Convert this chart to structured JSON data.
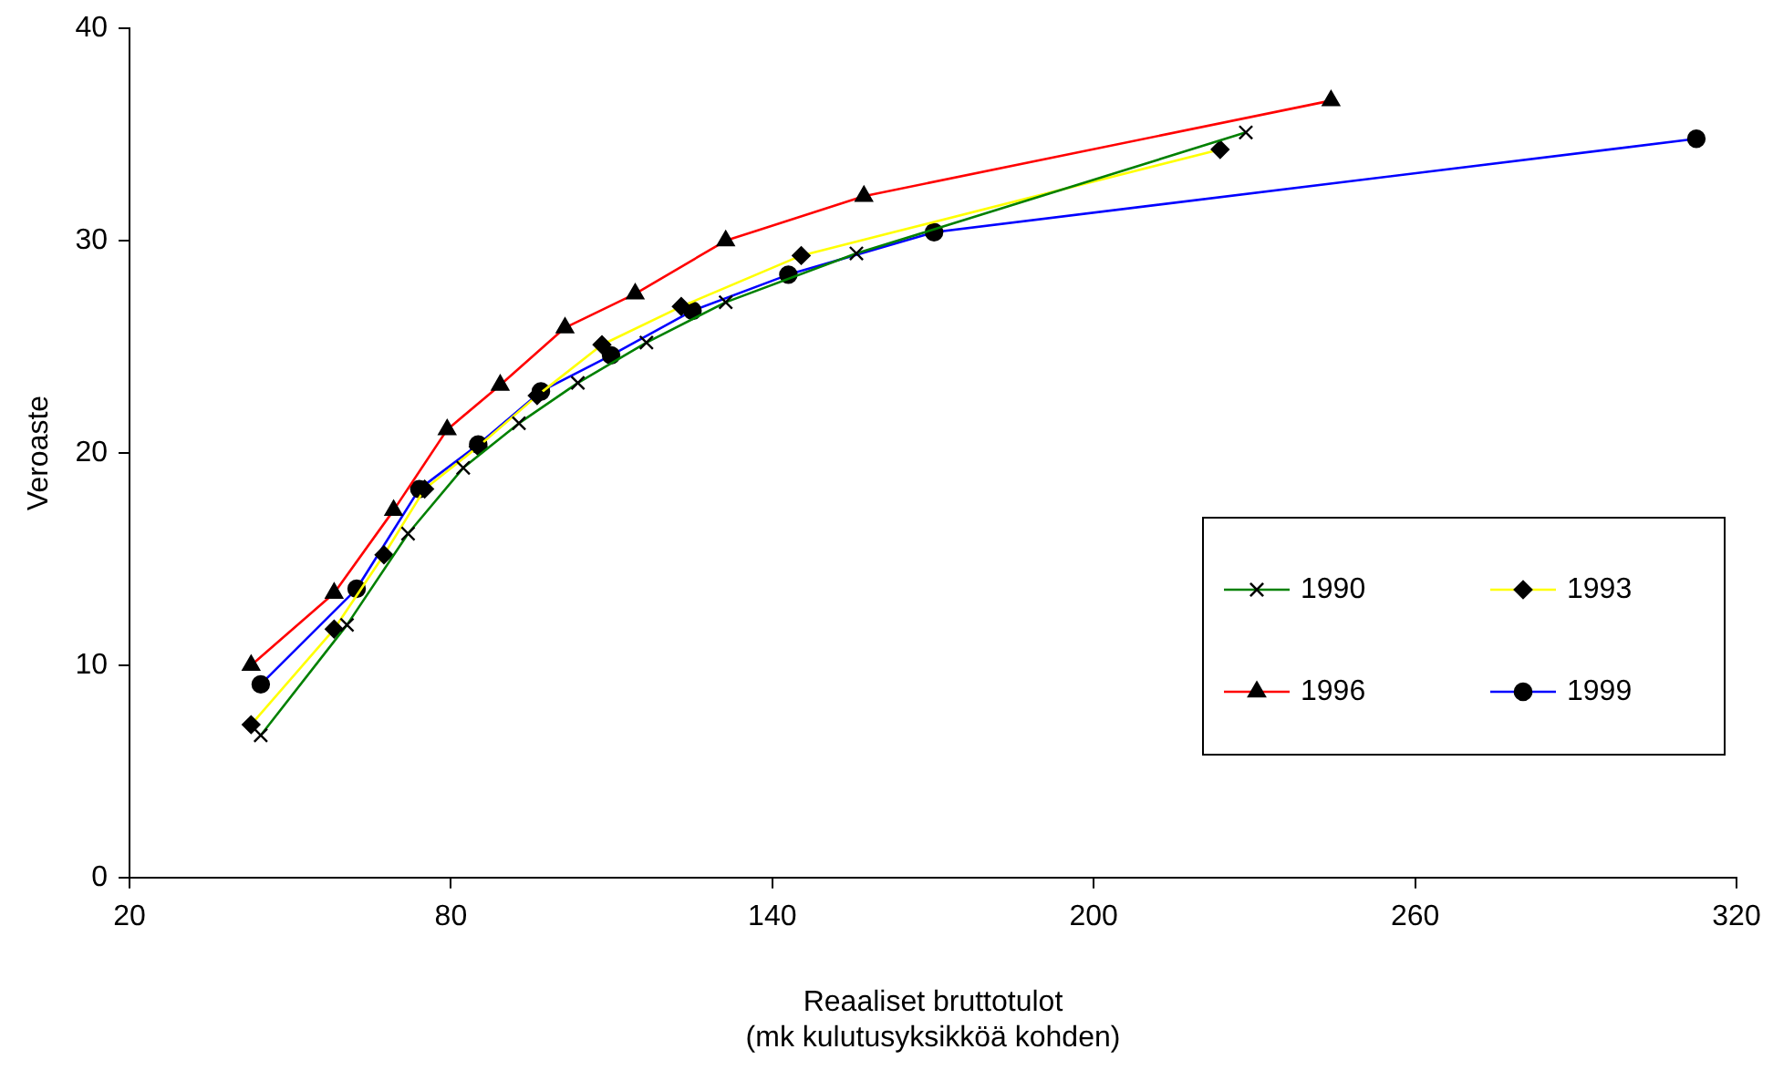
{
  "chart_data": {
    "type": "line",
    "xlabel": "Reaaliset bruttotulot\n(mk kulutusyksikköä kohden)",
    "ylabel": "Veroaste",
    "xlim": [
      20,
      320
    ],
    "xticks": [
      20,
      80,
      140,
      200,
      260,
      320
    ],
    "ylim": [
      0,
      40
    ],
    "yticks": [
      0,
      10,
      20,
      30,
      40
    ],
    "grid": false,
    "legend": "right",
    "line_style": "solid",
    "series": [
      {
        "name": "1990",
        "color": "#008000",
        "marker": "cross",
        "x": [
          44.5,
          60.6,
          72,
          82.3,
          92.7,
          103.7,
          116.5,
          131.3,
          155.7,
          228.4
        ],
        "values": [
          6.7,
          11.9,
          16.2,
          19.3,
          21.4,
          23.3,
          25.2,
          27.1,
          29.4,
          35.1
        ]
      },
      {
        "name": "1993",
        "color": "#ffff00",
        "marker": "diamond",
        "x": [
          42.7,
          58.2,
          67.5,
          75.1,
          85.1,
          96.1,
          108.2,
          123,
          145.4,
          223.6
        ],
        "values": [
          7.2,
          11.7,
          15.2,
          18.3,
          20.3,
          22.7,
          25.1,
          26.9,
          29.3,
          34.3
        ]
      },
      {
        "name": "1996",
        "color": "#ff0000",
        "marker": "triangle",
        "x": [
          42.7,
          58.2,
          69.3,
          79.3,
          89.2,
          101.3,
          114.4,
          131.3,
          157.1,
          244.3
        ],
        "values": [
          10.0,
          13.4,
          17.3,
          21.1,
          23.2,
          25.9,
          27.5,
          30.0,
          32.1,
          36.6
        ]
      },
      {
        "name": "1999",
        "color": "#0000ff",
        "marker": "circle",
        "x": [
          44.5,
          62.4,
          74.1,
          85.1,
          96.8,
          109.9,
          125.1,
          143,
          170.2,
          312.5
        ],
        "values": [
          9.1,
          13.6,
          18.3,
          20.4,
          22.9,
          24.6,
          26.7,
          28.4,
          30.4,
          34.8
        ]
      }
    ]
  }
}
